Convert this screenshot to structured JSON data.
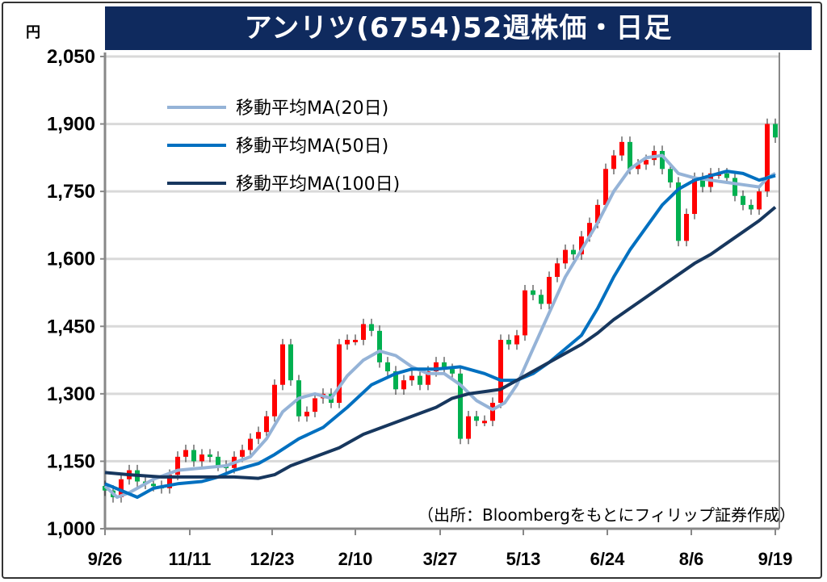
{
  "chart_data": {
    "type": "candlestick+line",
    "title": "アンリツ(6754)52週株価・日足",
    "unit": "円",
    "ylim": [
      1000,
      2050
    ],
    "yticks": [
      "1,000",
      "1,150",
      "1,300",
      "1,450",
      "1,600",
      "1,750",
      "1,900",
      "2,050"
    ],
    "ytick_values": [
      1000,
      1150,
      1300,
      1450,
      1600,
      1750,
      1900,
      2050
    ],
    "xticks": [
      "9/26",
      "11/11",
      "12/23",
      "2/10",
      "3/27",
      "5/13",
      "6/24",
      "8/6",
      "9/19"
    ],
    "xtick_index": [
      0,
      10.5,
      20.7,
      31,
      41.5,
      51.8,
      62.2,
      72.6,
      83
    ],
    "x_range": [
      0,
      83
    ],
    "grid": true,
    "up_color": "#ff0000",
    "down_color": "#00b050",
    "closes": [
      1085,
      1070,
      1110,
      1130,
      1105,
      1100,
      1095,
      1090,
      1120,
      1160,
      1175,
      1150,
      1165,
      1160,
      1140,
      1135,
      1160,
      1175,
      1200,
      1215,
      1250,
      1320,
      1410,
      1330,
      1250,
      1260,
      1290,
      1300,
      1280,
      1410,
      1420,
      1420,
      1455,
      1440,
      1370,
      1350,
      1310,
      1330,
      1340,
      1320,
      1350,
      1370,
      1355,
      1345,
      1200,
      1250,
      1240,
      1240,
      1280,
      1420,
      1410,
      1430,
      1530,
      1520,
      1500,
      1560,
      1590,
      1620,
      1610,
      1650,
      1680,
      1720,
      1800,
      1830,
      1860,
      1800,
      1810,
      1820,
      1840,
      1800,
      1770,
      1640,
      1700,
      1780,
      1760,
      1790,
      1790,
      1780,
      1740,
      1720,
      1710,
      1750,
      1900,
      1870
    ],
    "series": [
      {
        "name": "移動平均MA(20日)",
        "color": "#95b3d7",
        "x": [
          0,
          1.5,
          3,
          6,
          9,
          12,
          15,
          18,
          20,
          22,
          24,
          26,
          28,
          30,
          32,
          34,
          36,
          38,
          40,
          42,
          44,
          46,
          48,
          49.5,
          51,
          53,
          55,
          57,
          59,
          61,
          63,
          65,
          67,
          69,
          71,
          73,
          75,
          77,
          79,
          81,
          82,
          83
        ],
        "values": [
          1095,
          1070,
          1080,
          1110,
          1130,
          1135,
          1140,
          1160,
          1200,
          1260,
          1290,
          1300,
          1290,
          1340,
          1375,
          1395,
          1385,
          1360,
          1345,
          1345,
          1320,
          1285,
          1265,
          1280,
          1320,
          1400,
          1480,
          1560,
          1620,
          1680,
          1750,
          1800,
          1825,
          1830,
          1790,
          1780,
          1775,
          1770,
          1765,
          1760,
          1780,
          1790
        ]
      },
      {
        "name": "移動平均MA(50日)",
        "color": "#0070c0",
        "x": [
          0,
          2,
          4,
          6,
          9,
          12,
          14,
          16,
          19,
          21,
          24,
          27,
          30,
          33,
          36,
          38,
          41,
          44,
          47,
          49,
          51,
          53,
          55,
          57,
          59,
          61,
          63,
          65,
          67,
          69,
          71,
          73,
          75,
          77,
          79,
          81,
          83
        ],
        "values": [
          1100,
          1085,
          1070,
          1090,
          1100,
          1105,
          1115,
          1130,
          1145,
          1165,
          1200,
          1225,
          1270,
          1320,
          1345,
          1355,
          1355,
          1360,
          1345,
          1330,
          1330,
          1345,
          1370,
          1400,
          1430,
          1490,
          1560,
          1620,
          1670,
          1720,
          1755,
          1775,
          1785,
          1795,
          1790,
          1775,
          1785
        ]
      },
      {
        "name": "移動平均MA(100日)",
        "color": "#17375e",
        "x": [
          0,
          3,
          7,
          12,
          16,
          19,
          21,
          23,
          26,
          29,
          32,
          35,
          38,
          41,
          43,
          45,
          47,
          49,
          51,
          53,
          55,
          57,
          59,
          61,
          63,
          65,
          67,
          69,
          71,
          73,
          75,
          77,
          79,
          81,
          83
        ],
        "values": [
          1125,
          1120,
          1115,
          1115,
          1115,
          1112,
          1120,
          1140,
          1160,
          1180,
          1210,
          1230,
          1250,
          1270,
          1290,
          1300,
          1305,
          1310,
          1330,
          1350,
          1370,
          1390,
          1410,
          1435,
          1465,
          1490,
          1515,
          1540,
          1565,
          1590,
          1610,
          1635,
          1660,
          1685,
          1715
        ]
      }
    ],
    "legend": [
      "移動平均MA(20日)",
      "移動平均MA(50日)",
      "移動平均MA(100日)"
    ],
    "legend_position": "top-left",
    "source": "（出所：Bloombergをもとにフィリップ証券作成）"
  }
}
